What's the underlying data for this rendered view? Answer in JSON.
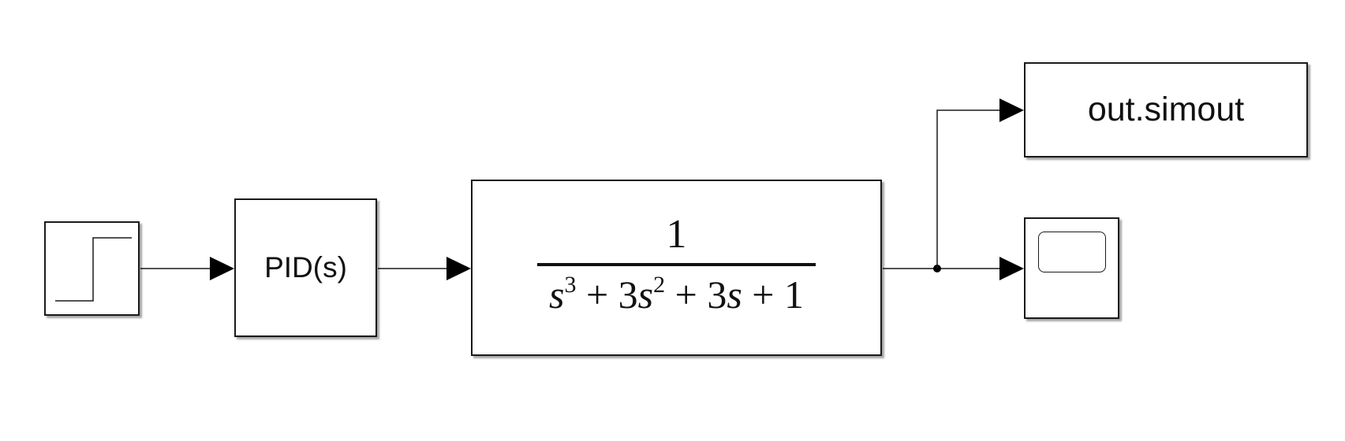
{
  "diagram": {
    "blocks": {
      "step": {
        "kind": "Step"
      },
      "pid": {
        "label": "PID(s)"
      },
      "transfer_fcn": {
        "numerator": "1",
        "denominator": {
          "s1": "s",
          "e1": "3",
          "p1": " + 3",
          "s2": "s",
          "e2": "2",
          "p2": " + 3",
          "s3": "s",
          "p3": " + 1"
        }
      },
      "to_workspace": {
        "label": "out.simout"
      },
      "scope": {
        "kind": "Scope"
      }
    },
    "connections": [
      "step -> pid",
      "pid -> transfer_fcn",
      "transfer_fcn -> to_workspace",
      "transfer_fcn -> scope"
    ]
  }
}
